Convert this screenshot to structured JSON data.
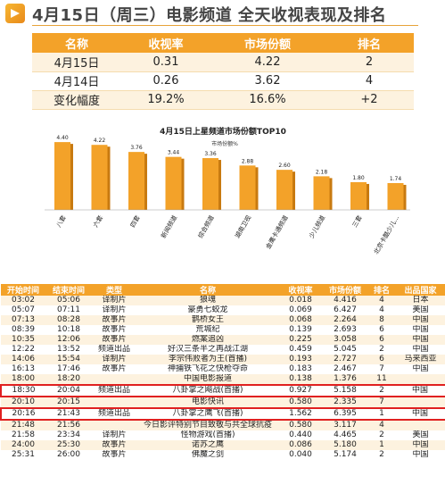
{
  "header": {
    "title": "4月15日（周三）电影频道 全天收视表现及排名"
  },
  "summary": {
    "columns": [
      "名称",
      "收视率",
      "市场份额",
      "排名"
    ],
    "rows": [
      [
        "4月15日",
        "0.31",
        "4.22",
        "2"
      ],
      [
        "4月14日",
        "0.26",
        "3.62",
        "4"
      ],
      [
        "变化幅度",
        "19.2%",
        "16.6%",
        "+2"
      ]
    ]
  },
  "chart_data": {
    "type": "bar",
    "title": "4月15日上星频道市场份额TOP10",
    "legend": "市场份额%",
    "categories": [
      "八套",
      "六套",
      "四套",
      "新闻频道",
      "综合频道",
      "湖南卫视",
      "金鹰卡通频道",
      "少儿频道",
      "三套",
      "北京卡酷少儿..."
    ],
    "values": [
      4.4,
      4.22,
      3.76,
      3.44,
      3.36,
      2.88,
      2.6,
      2.18,
      1.8,
      1.74
    ],
    "value_labels": [
      "4.40",
      "4.22",
      "3.76",
      "3.44",
      "3.36",
      "2.88",
      "2.60",
      "2.18",
      "1.80",
      "1.74"
    ],
    "ylim": [
      0,
      5
    ],
    "bar_color": "#f3a229"
  },
  "schedule": {
    "columns": [
      "开始时间",
      "结束时间",
      "类型",
      "名称",
      "收视率",
      "市场份额",
      "排名",
      "出品国家"
    ],
    "rows": [
      [
        "03:02",
        "05:06",
        "译制片",
        "狼魂",
        "0.018",
        "4.416",
        "4",
        "日本"
      ],
      [
        "05:07",
        "07:11",
        "译制片",
        "豪勇七蛟龙",
        "0.069",
        "6.427",
        "4",
        "美国"
      ],
      [
        "07:13",
        "08:28",
        "故事片",
        "鹊桥女王",
        "0.068",
        "2.264",
        "8",
        "中国"
      ],
      [
        "08:39",
        "10:18",
        "故事片",
        "荒城纪",
        "0.139",
        "2.693",
        "6",
        "中国"
      ],
      [
        "10:35",
        "12:06",
        "故事片",
        "燃案追凶",
        "0.225",
        "3.058",
        "6",
        "中国"
      ],
      [
        "12:22",
        "13:52",
        "频道出品",
        "好汉三条半之再战江湖",
        "0.459",
        "5.045",
        "2",
        "中国"
      ],
      [
        "14:06",
        "15:54",
        "译制片",
        "李宗伟败者为王(首播)",
        "0.193",
        "2.727",
        "6",
        "马来西亚"
      ],
      [
        "16:13",
        "17:46",
        "故事片",
        "神捕铁飞花之快枪夺命",
        "0.183",
        "2.467",
        "7",
        "中国"
      ],
      [
        "18:00",
        "18:20",
        "",
        "中国电影报道",
        "0.138",
        "1.376",
        "11",
        ""
      ],
      [
        "18:30",
        "20:04",
        "频道出品",
        "八卦掌之飚战(首播)",
        "0.927",
        "5.158",
        "2",
        "中国"
      ],
      [
        "20:10",
        "20:15",
        "",
        "电影快讯",
        "0.580",
        "2.335",
        "7",
        ""
      ],
      [
        "20:16",
        "21:43",
        "频道出品",
        "八卦掌之鹰飞(首播)",
        "1.562",
        "6.395",
        "1",
        "中国"
      ],
      [
        "21:48",
        "21:56",
        "",
        "今日影评特别节目致敬与共全球抗疫",
        "0.580",
        "3.117",
        "4",
        ""
      ],
      [
        "21:58",
        "23:34",
        "译制片",
        "怪物游戏(首播)",
        "0.440",
        "4.465",
        "2",
        "美国"
      ],
      [
        "24:00",
        "25:30",
        "故事片",
        "诺苏之鹰",
        "0.086",
        "5.180",
        "1",
        "中国"
      ],
      [
        "25:31",
        "26:00",
        "故事片",
        "佛魔之剑",
        "0.040",
        "5.174",
        "2",
        "中国"
      ]
    ],
    "highlighted_rows": [
      9,
      11
    ]
  }
}
